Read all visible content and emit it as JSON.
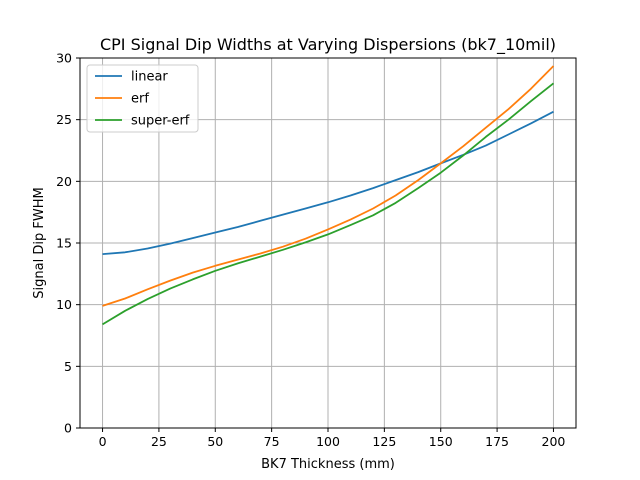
{
  "chart_data": {
    "type": "line",
    "title": "CPI Signal Dip Widths at Varying Dispersions (bk7_10mil)",
    "xlabel": "BK7 Thickness (mm)",
    "ylabel": "Signal Dip FWHM",
    "xlim": [
      -10,
      210
    ],
    "ylim": [
      0,
      30
    ],
    "xticks": [
      0,
      25,
      50,
      75,
      100,
      125,
      150,
      175,
      200
    ],
    "yticks": [
      0,
      5,
      10,
      15,
      20,
      25,
      30
    ],
    "grid": true,
    "legend_position": "top-left",
    "x": [
      0,
      10,
      20,
      30,
      40,
      50,
      60,
      70,
      80,
      90,
      100,
      110,
      120,
      130,
      140,
      150,
      160,
      170,
      180,
      190,
      200
    ],
    "series": [
      {
        "name": "linear",
        "color": "#1f77b4",
        "values": [
          14.1,
          14.25,
          14.55,
          14.95,
          15.4,
          15.85,
          16.3,
          16.8,
          17.3,
          17.8,
          18.3,
          18.85,
          19.45,
          20.1,
          20.75,
          21.45,
          22.15,
          22.9,
          23.8,
          24.7,
          25.65
        ]
      },
      {
        "name": "erf",
        "color": "#ff7f0e",
        "values": [
          9.9,
          10.5,
          11.25,
          11.95,
          12.6,
          13.15,
          13.65,
          14.15,
          14.7,
          15.35,
          16.1,
          16.9,
          17.8,
          18.85,
          20.1,
          21.45,
          22.85,
          24.35,
          25.85,
          27.5,
          29.35
        ]
      },
      {
        "name": "super-erf",
        "color": "#2ca02c",
        "values": [
          8.4,
          9.5,
          10.45,
          11.3,
          12.05,
          12.75,
          13.35,
          13.9,
          14.45,
          15.05,
          15.7,
          16.45,
          17.25,
          18.25,
          19.45,
          20.7,
          22.1,
          23.6,
          25.0,
          26.5,
          27.95
        ]
      }
    ]
  }
}
